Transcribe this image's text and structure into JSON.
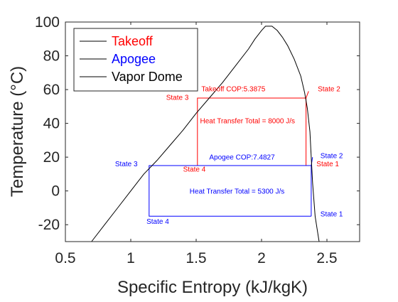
{
  "chart_data": {
    "type": "line",
    "title": "",
    "xlabel": "Specific Entropy (kJ/kgK)",
    "ylabel": "Temperature (°C)",
    "xlim": [
      0.5,
      2.75
    ],
    "ylim": [
      -30,
      100
    ],
    "xticks": [
      0.5,
      1,
      1.5,
      2,
      2.5
    ],
    "xtick_labels": [
      "0.5",
      "1",
      "1.5",
      "2",
      "2.5"
    ],
    "yticks": [
      -20,
      0,
      20,
      40,
      60,
      80,
      100
    ],
    "ytick_labels": [
      "-20",
      "0",
      "20",
      "40",
      "60",
      "80",
      "100"
    ],
    "grid": false,
    "legend": {
      "placement": "top-left",
      "entries": [
        {
          "label": "Takeoff",
          "text_color": "#ff0000",
          "line_color": "#000000"
        },
        {
          "label": "Apogee",
          "text_color": "#0000ff",
          "line_color": "#000000"
        },
        {
          "label": "Vapor Dome",
          "text_color": "#000000",
          "line_color": "#000000"
        }
      ]
    },
    "series": [
      {
        "name": "Takeoff",
        "color": "#ff0000",
        "points": [
          [
            2.34,
            15
          ],
          [
            2.34,
            55
          ],
          [
            1.51,
            55
          ],
          [
            1.51,
            15
          ],
          [
            2.34,
            15
          ]
        ],
        "marker": [
          [
            2.34,
            55
          ],
          [
            2.36,
            59
          ]
        ]
      },
      {
        "name": "Apogee",
        "color": "#0000ff",
        "points": [
          [
            2.38,
            -15
          ],
          [
            2.38,
            15
          ],
          [
            1.14,
            15
          ],
          [
            1.14,
            -15
          ],
          [
            2.38,
            -15
          ]
        ],
        "marker": [
          [
            2.38,
            15
          ],
          [
            2.39,
            20
          ]
        ]
      },
      {
        "name": "Vapor Dome",
        "color": "#000000",
        "points": [
          [
            0.7,
            -30
          ],
          [
            0.8,
            -20
          ],
          [
            0.9,
            -10
          ],
          [
            1.0,
            0
          ],
          [
            1.1,
            10
          ],
          [
            1.2,
            18
          ],
          [
            1.3,
            27
          ],
          [
            1.4,
            36
          ],
          [
            1.5,
            46
          ],
          [
            1.6,
            55
          ],
          [
            1.7,
            64
          ],
          [
            1.8,
            74
          ],
          [
            1.9,
            84
          ],
          [
            1.95,
            90
          ],
          [
            2.0,
            95
          ],
          [
            2.03,
            97.5
          ],
          [
            2.08,
            97.5
          ],
          [
            2.12,
            95
          ],
          [
            2.16,
            91
          ],
          [
            2.2,
            86
          ],
          [
            2.25,
            78
          ],
          [
            2.3,
            68
          ],
          [
            2.33,
            58
          ],
          [
            2.35,
            49
          ],
          [
            2.37,
            35
          ],
          [
            2.38,
            20
          ],
          [
            2.39,
            5
          ],
          [
            2.4,
            -5
          ],
          [
            2.41,
            -15
          ],
          [
            2.43,
            -25
          ],
          [
            2.44,
            -30
          ]
        ]
      }
    ],
    "annotations": [
      {
        "text": "Takeoff COP:5.3875",
        "x": 1.54,
        "y": 59,
        "color": "#ff0000",
        "size": 11
      },
      {
        "text": "Heat Transfer Total = 8000 J/s",
        "x": 1.53,
        "y": 40,
        "color": "#ff0000",
        "size": 10
      },
      {
        "text": "State 2",
        "x": 2.43,
        "y": 59,
        "color": "#ff0000",
        "size": 10
      },
      {
        "text": "State 3",
        "x": 1.27,
        "y": 54,
        "color": "#ff0000",
        "size": 10
      },
      {
        "text": "State 4",
        "x": 1.4,
        "y": 11.5,
        "color": "#ff0000",
        "size": 10
      },
      {
        "text": "State 1",
        "x": 2.42,
        "y": 14.5,
        "color": "#ff0000",
        "size": 10
      },
      {
        "text": "Apogee COP:7.4827",
        "x": 1.6,
        "y": 18.5,
        "color": "#0000ff",
        "size": 11
      },
      {
        "text": "Heat Transfer Total = 5300 J/s",
        "x": 1.45,
        "y": -1.5,
        "color": "#0000ff",
        "size": 10
      },
      {
        "text": "State 2",
        "x": 2.45,
        "y": 19.5,
        "color": "#0000ff",
        "size": 10
      },
      {
        "text": "State 3",
        "x": 0.88,
        "y": 14.5,
        "color": "#0000ff",
        "size": 10
      },
      {
        "text": "State 4",
        "x": 1.12,
        "y": -19.5,
        "color": "#0000ff",
        "size": 10
      },
      {
        "text": "State 1",
        "x": 2.45,
        "y": -15,
        "color": "#0000ff",
        "size": 10
      }
    ]
  }
}
